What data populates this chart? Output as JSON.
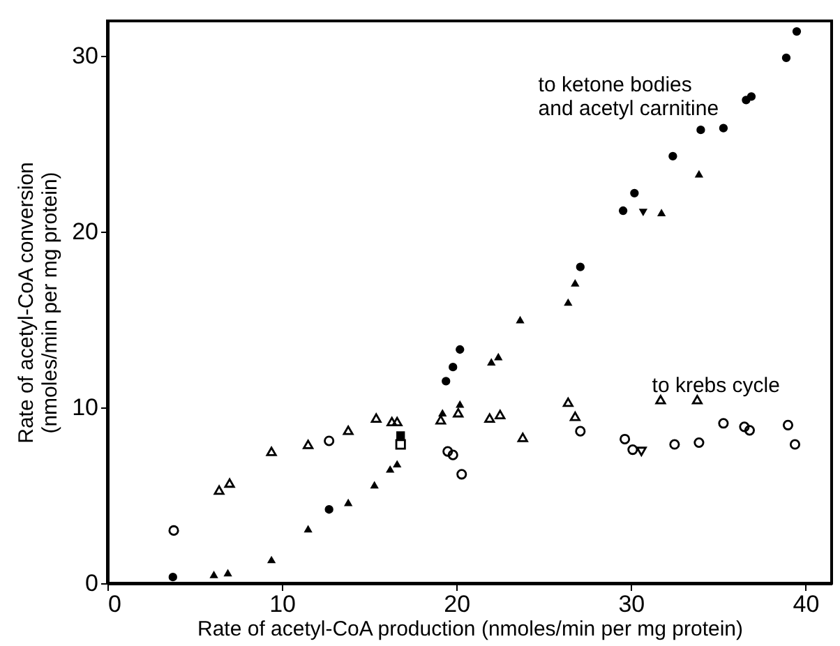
{
  "chart_data": {
    "type": "scatter",
    "xlabel": "Rate of acetyl-CoA production (nmoles/min per mg protein)",
    "ylabel": "Rate of acetyl-CoA conversion\n(nmoles/min per mg protein)",
    "xlim": [
      0,
      41.5
    ],
    "ylim": [
      0,
      32
    ],
    "xticks": [
      0,
      10,
      20,
      30,
      40
    ],
    "yticks": [
      0,
      10,
      20,
      30
    ],
    "grid": false,
    "series": [
      {
        "color": "#000000",
        "marker": "circle",
        "x": [
          3.75,
          12.7,
          19.4,
          19.8,
          20.2,
          27.1,
          29.55,
          30.2,
          32.4,
          34.0,
          35.3,
          36.6,
          36.9,
          38.9,
          39.5
        ],
        "values": [
          0.35,
          4.2,
          11.5,
          12.3,
          13.3,
          18.0,
          21.2,
          22.2,
          24.3,
          25.8,
          25.9,
          27.5,
          27.7,
          29.9,
          31.4
        ]
      },
      {
        "color": "#000000",
        "marker": "triangle",
        "x": [
          6.1,
          6.9,
          9.4,
          11.5,
          13.8,
          15.3,
          16.2,
          16.6,
          19.2,
          20.2,
          22.0,
          22.4,
          23.65,
          26.4,
          26.8,
          31.75,
          33.9
        ],
        "values": [
          0.5,
          0.6,
          1.35,
          3.1,
          4.6,
          5.6,
          6.5,
          6.8,
          9.7,
          10.2,
          12.6,
          12.9,
          15.0,
          16.0,
          17.1,
          21.1,
          23.3
        ]
      },
      {
        "color": "#000000",
        "marker": "triangle-down",
        "x": [
          30.7
        ],
        "values": [
          21.1
        ]
      },
      {
        "color": "#000000",
        "marker": "square",
        "x": [
          16.8
        ],
        "values": [
          8.4
        ]
      },
      {
        "color": "#000000",
        "marker": "circle-open",
        "x": [
          3.8,
          12.7,
          19.5,
          19.8,
          20.3,
          27.1,
          29.65,
          30.1,
          32.5,
          33.9,
          35.3,
          36.5,
          36.8,
          39.0,
          39.4
        ],
        "values": [
          3.0,
          8.1,
          7.5,
          7.3,
          6.2,
          8.65,
          8.2,
          7.6,
          7.9,
          8.0,
          9.1,
          8.9,
          8.7,
          9.0,
          7.9
        ]
      },
      {
        "color": "#000000",
        "marker": "triangle-open",
        "x": [
          6.4,
          7.0,
          9.4,
          11.5,
          13.8,
          15.4,
          16.3,
          16.6,
          19.1,
          20.1,
          21.9,
          22.5,
          23.8,
          26.4,
          26.8,
          31.7,
          33.8
        ],
        "values": [
          5.3,
          5.7,
          7.5,
          7.9,
          8.7,
          9.4,
          9.2,
          9.2,
          9.3,
          9.7,
          9.4,
          9.6,
          8.3,
          10.3,
          9.5,
          10.45,
          10.45
        ]
      },
      {
        "color": "#000000",
        "marker": "triangle-down-open",
        "x": [
          30.6
        ],
        "values": [
          7.5
        ]
      },
      {
        "color": "#000000",
        "marker": "square-open",
        "x": [
          16.8
        ],
        "values": [
          7.9
        ]
      }
    ],
    "annotations": [
      "to ketone bodies\nand acetyl carnitine",
      "to krebs cycle"
    ]
  }
}
